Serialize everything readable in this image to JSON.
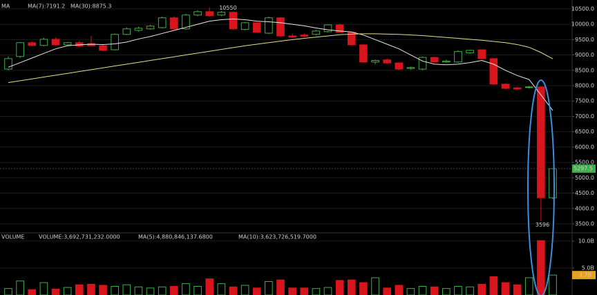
{
  "chart_data": [
    {
      "type": "candlestick",
      "indicator_label": "MA",
      "open": [
        8540,
        8950,
        9400,
        9310,
        9510,
        9330,
        9400,
        9370,
        9300,
        9170,
        9670,
        9800,
        9850,
        9890,
        10210,
        9850,
        10300,
        10410,
        10300,
        10390,
        9830,
        10050,
        9710,
        10210,
        9620,
        9650,
        9670,
        9760,
        9980,
        9740,
        9330,
        8770,
        8840,
        8740,
        8560,
        8540,
        8920,
        8770,
        8770,
        9070,
        9170,
        8880,
        8050,
        7930,
        7940,
        7960,
        4350
      ],
      "high": [
        8950,
        9420,
        9450,
        9560,
        9560,
        9420,
        9460,
        9620,
        9350,
        9700,
        9900,
        9920,
        9980,
        10250,
        10260,
        10350,
        10450,
        10550,
        10430,
        10420,
        10080,
        10080,
        10250,
        10240,
        9700,
        9700,
        9820,
        10000,
        10020,
        9760,
        9350,
        8850,
        8880,
        8760,
        8620,
        8950,
        8950,
        8850,
        9150,
        9180,
        9180,
        8900,
        8080,
        7960,
        7990,
        7980,
        5300
      ],
      "low": [
        8500,
        8900,
        9280,
        9280,
        9300,
        9300,
        9250,
        9280,
        9120,
        9150,
        9650,
        9760,
        9820,
        9860,
        9820,
        9820,
        10260,
        10250,
        10260,
        9820,
        9800,
        9720,
        9680,
        9580,
        9560,
        9580,
        9640,
        9730,
        9720,
        9300,
        8740,
        8700,
        8700,
        8500,
        8520,
        8500,
        8740,
        8740,
        8740,
        9040,
        8860,
        8020,
        7880,
        7860,
        7900,
        3596,
        4300
      ],
      "close": [
        8880,
        9400,
        9310,
        9510,
        9330,
        9400,
        9290,
        9300,
        9150,
        9670,
        9850,
        9870,
        9940,
        10210,
        9850,
        10300,
        10410,
        10280,
        10390,
        9850,
        10050,
        9740,
        10210,
        9620,
        9580,
        9610,
        9780,
        9980,
        9740,
        9330,
        8770,
        8820,
        8740,
        8540,
        8590,
        8920,
        8770,
        8800,
        9110,
        9150,
        8880,
        8050,
        7910,
        7890,
        7960,
        4350,
        5297.5
      ],
      "up_color": "#3fae49",
      "down_color": "#d8141c",
      "series": [
        {
          "name": "MA(7):7191.2",
          "color": "#e8e8e8",
          "values": [
            8600,
            8750,
            8900,
            9050,
            9200,
            9300,
            9330,
            9350,
            9340,
            9360,
            9420,
            9520,
            9600,
            9700,
            9800,
            9900,
            10000,
            10100,
            10150,
            10170,
            10150,
            10100,
            10080,
            10050,
            10000,
            9950,
            9880,
            9820,
            9780,
            9750,
            9650,
            9500,
            9350,
            9200,
            9000,
            8800,
            8700,
            8680,
            8700,
            8750,
            8820,
            8700,
            8500,
            8330,
            8200,
            7700,
            7191.2
          ]
        },
        {
          "name": "MA(30):8875.3",
          "color": "#e6e08a",
          "values": [
            8100,
            8160,
            8220,
            8280,
            8340,
            8400,
            8460,
            8520,
            8580,
            8640,
            8700,
            8760,
            8820,
            8880,
            8940,
            9000,
            9060,
            9120,
            9180,
            9240,
            9300,
            9350,
            9400,
            9450,
            9500,
            9540,
            9580,
            9620,
            9660,
            9680,
            9690,
            9690,
            9680,
            9670,
            9650,
            9630,
            9600,
            9570,
            9540,
            9510,
            9480,
            9440,
            9400,
            9340,
            9250,
            9080,
            8875.3
          ]
        }
      ],
      "ylim": [
        3140,
        10790
      ],
      "yticks": [
        {
          "value": 3500,
          "label": "3500.0"
        },
        {
          "value": 4000,
          "label": "4000.0"
        },
        {
          "value": 4500,
          "label": "4500.0"
        },
        {
          "value": 5000,
          "label": "5000.0"
        },
        {
          "value": 5500,
          "label": "5500.0"
        },
        {
          "value": 6000,
          "label": "6000.0"
        },
        {
          "value": 6500,
          "label": "6500.0"
        },
        {
          "value": 7000,
          "label": "7000.0"
        },
        {
          "value": 7500,
          "label": "7500.0"
        },
        {
          "value": 8000,
          "label": "8000.0"
        },
        {
          "value": 8500,
          "label": "8500.0"
        },
        {
          "value": 9000,
          "label": "9000.0"
        },
        {
          "value": 9500,
          "label": "9500.0"
        },
        {
          "value": 10000,
          "label": "10000.0"
        },
        {
          "value": 10500,
          "label": "10500.0"
        }
      ],
      "grid": true,
      "current_price": 5297.5,
      "high_label": 10550,
      "low_label": 3596
    },
    {
      "type": "bar",
      "indicator_label": "VOLUME",
      "legend": [
        "VOLUME:3,692,731,232.0000",
        "MA(5):4,880,846,137.6800",
        "MA(10):3,623,726,519.7000"
      ],
      "values": [
        1200000000,
        2600000000,
        1000000000,
        2300000000,
        1100000000,
        1400000000,
        1900000000,
        2000000000,
        1800000000,
        1600000000,
        1900000000,
        1500000000,
        1300000000,
        1500000000,
        1600000000,
        2100000000,
        1600000000,
        3000000000,
        2100000000,
        1500000000,
        1800000000,
        1300000000,
        2500000000,
        2800000000,
        1300000000,
        1300000000,
        1200000000,
        1400000000,
        2700000000,
        2800000000,
        2300000000,
        3200000000,
        1300000000,
        1800000000,
        1200000000,
        1600000000,
        1500000000,
        1200000000,
        1600000000,
        1500000000,
        2000000000,
        3400000000,
        2300000000,
        1900000000,
        3200000000,
        10100000000,
        3692731232
      ],
      "ylim": [
        0,
        11400000000
      ],
      "yticks": [
        {
          "value": 5000000000,
          "label": "5.0B"
        },
        {
          "value": 10000000000,
          "label": "10.0B"
        }
      ],
      "current_label": {
        "value": 3692731232,
        "label": "3.7B"
      }
    }
  ]
}
